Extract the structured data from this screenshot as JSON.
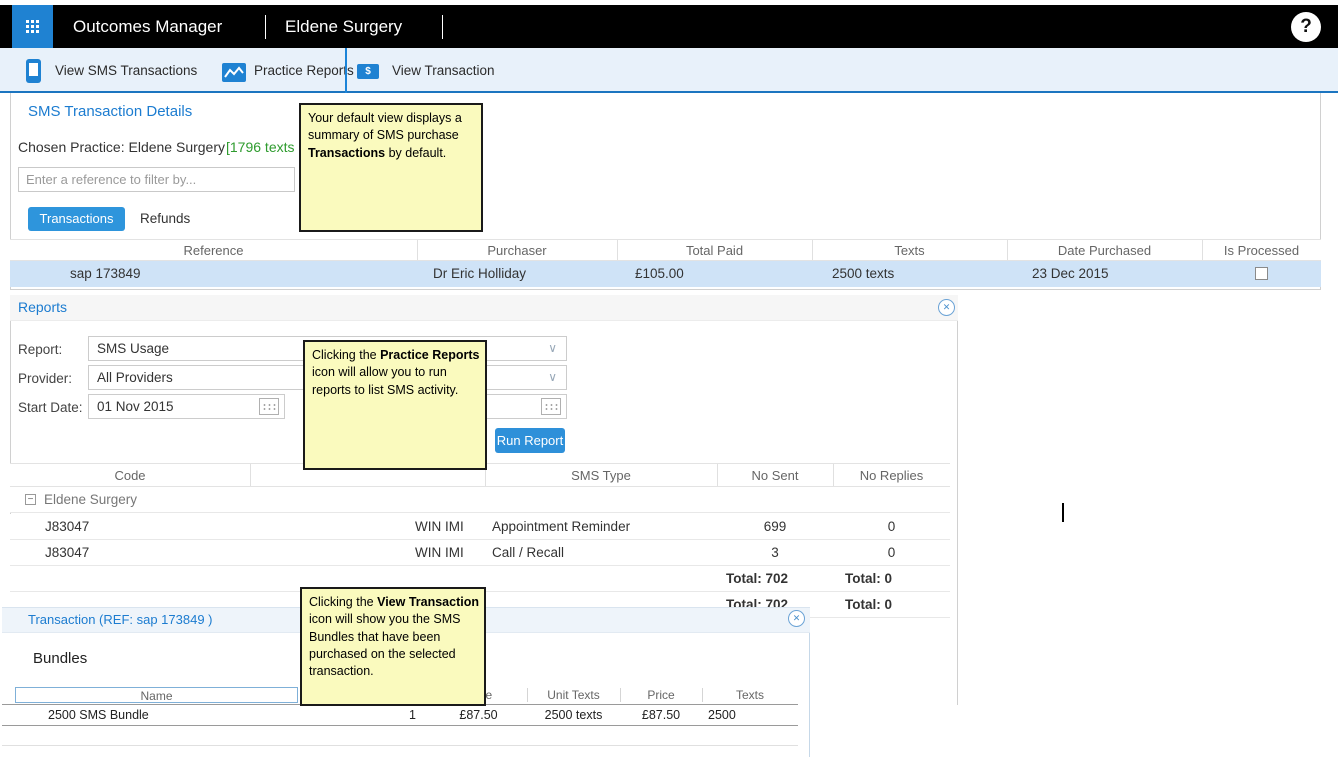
{
  "app": {
    "title": "Outcomes Manager",
    "practice": "Eldene Surgery",
    "help": "?"
  },
  "icons": {
    "close": "✕",
    "chevron": "∨",
    "minus": "−",
    "dollar": "$"
  },
  "nav": {
    "items": [
      {
        "label": "View SMS Transactions",
        "icon": "phone-icon"
      },
      {
        "label": "Practice Reports",
        "icon": "chart-icon"
      },
      {
        "label": "View Transaction",
        "icon": "banknote-icon"
      }
    ]
  },
  "sms_section": {
    "title": "SMS Transaction Details",
    "chosen_practice_label": "Chosen Practice: Eldene Surgery",
    "texts_remaining": "[1796 texts r",
    "filter_placeholder": "Enter a reference to filter by...",
    "tabs": [
      {
        "label": "Transactions",
        "active": true
      },
      {
        "label": "Refunds",
        "active": false
      }
    ],
    "table": {
      "columns": [
        "Reference",
        "Purchaser",
        "Total Paid",
        "Texts",
        "Date Purchased",
        "Is Processed"
      ],
      "rows": [
        {
          "reference": "sap 173849",
          "purchaser": "Dr Eric Holliday",
          "total_paid": "£105.00",
          "texts": "2500 texts",
          "date_purchased": "23 Dec 2015",
          "is_processed": false
        }
      ]
    }
  },
  "reports_section": {
    "title": "Reports",
    "form": {
      "report_label": "Report:",
      "report_value": "SMS Usage",
      "provider_label": "Provider:",
      "provider_value": "All Providers",
      "start_date_label": "Start Date:",
      "start_date_value": "01 Nov 2015",
      "run_button": "Run Report"
    },
    "table": {
      "columns": [
        "Code",
        "",
        "SMS Type",
        "No Sent",
        "No Replies"
      ],
      "group_label": "Eldene Surgery",
      "rows": [
        {
          "code": "J83047",
          "provider": "WIN IMI",
          "sms_type": "Appointment Reminder",
          "no_sent": "699",
          "no_replies": "0"
        },
        {
          "code": "J83047",
          "provider": "WIN IMI",
          "sms_type": "Call / Recall",
          "no_sent": "3",
          "no_replies": "0"
        }
      ],
      "totals": [
        {
          "no_sent": "Total: 702",
          "no_replies": "Total: 0"
        },
        {
          "no_sent": "Total: 702",
          "no_replies": "Total: 0"
        }
      ]
    }
  },
  "transaction_section": {
    "title": "Transaction (REF: sap 173849 )",
    "subtitle": "Bundles",
    "table": {
      "columns": [
        "Name",
        "",
        "Price",
        "Unit Texts",
        "Price",
        "Texts"
      ],
      "rows": [
        {
          "name": "2500 SMS Bundle",
          "quantity": "1",
          "unit_price": "£87.50",
          "unit_texts": "2500 texts",
          "price": "£87.50",
          "texts": "2500"
        }
      ]
    }
  },
  "tooltips": [
    {
      "segments": [
        {
          "text": "Your default view displays a summary of SMS purchase "
        },
        {
          "text": "Transactions",
          "bold": true
        },
        {
          "text": " by default."
        }
      ]
    },
    {
      "segments": [
        {
          "text": "Clicking the "
        },
        {
          "text": "Practice Reports",
          "bold": true
        },
        {
          "text": " icon will allow you to run reports to list SMS activity."
        }
      ]
    },
    {
      "segments": [
        {
          "text": "Clicking the "
        },
        {
          "text": "View Transaction",
          "bold": true
        },
        {
          "text": " icon will show you the SMS Bundles that have been purchased on the selected transaction."
        }
      ]
    }
  ],
  "colors": {
    "accent_blue": "#1f82d2",
    "heading_blue": "#1c7cd0",
    "selected_row": "#cfe3f7",
    "active_tab": "#2e95dc",
    "texts_remaining_green": "#2e9b2e",
    "tooltip_bg": "#fafabe",
    "topbar_black": "#000000",
    "navbar_bg": "#e8f1fa"
  }
}
